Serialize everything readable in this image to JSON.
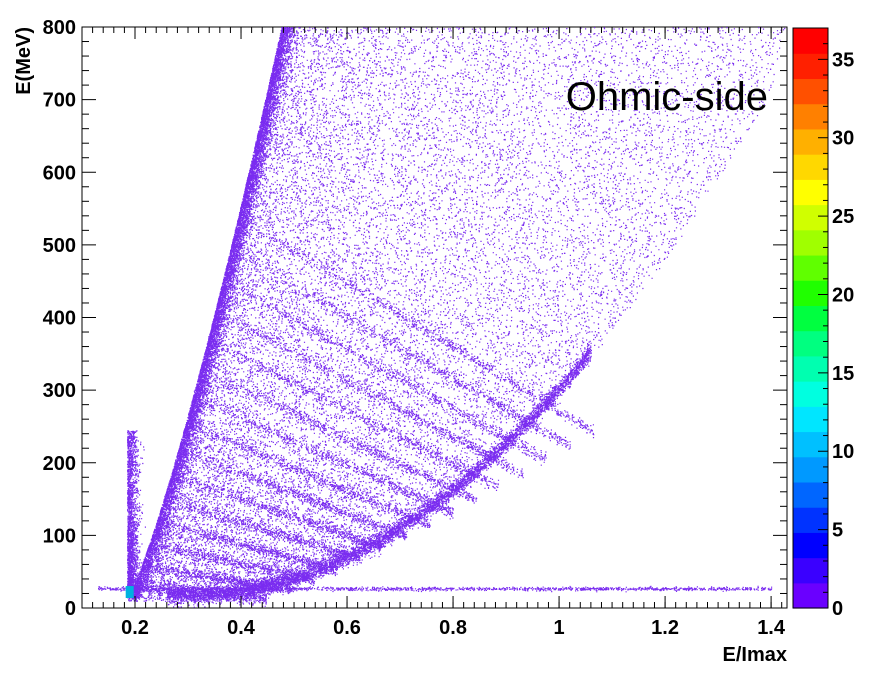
{
  "chart_data": {
    "type": "heatmap",
    "title": "",
    "xlabel": "E/Imax",
    "ylabel": "E(MeV)",
    "annotation": "Ohmic-side",
    "xlim": [
      0.1,
      1.43
    ],
    "ylim": [
      0,
      800
    ],
    "x_ticks": [
      0.2,
      0.4,
      0.6,
      0.8,
      1,
      1.2,
      1.4
    ],
    "x_tick_labels": [
      "0.2",
      "0.4",
      "0.6",
      "0.8",
      "1",
      "1.2",
      "1.4"
    ],
    "y_ticks": [
      0,
      100,
      200,
      300,
      400,
      500,
      600,
      700,
      800
    ],
    "y_tick_labels": [
      "0",
      "100",
      "200",
      "300",
      "400",
      "500",
      "600",
      "700",
      "800"
    ],
    "colorbar": {
      "range": [
        0,
        37
      ],
      "ticks": [
        0,
        5,
        10,
        15,
        20,
        25,
        30,
        35
      ],
      "tick_labels": [
        "0",
        "5",
        "10",
        "15",
        "20",
        "25",
        "30",
        "35"
      ],
      "colors": [
        "#6a00ff",
        "#3a00ff",
        "#0000ff",
        "#0033ff",
        "#0066ff",
        "#0099ff",
        "#00c0ff",
        "#00e6ff",
        "#00ffe0",
        "#00ffb0",
        "#00ff80",
        "#00ff40",
        "#20ff00",
        "#60ff00",
        "#a0ff00",
        "#d0ff00",
        "#ffff00",
        "#ffd800",
        "#ffb000",
        "#ff8000",
        "#ff5000",
        "#ff2000",
        "#ff0000"
      ]
    },
    "point_color": "#7a2cf0",
    "hotspot": {
      "x": 0.19,
      "y": 22,
      "color": "#00b0e0"
    },
    "band_model": {
      "edge_ridge": "E = 3590 * (x - 0.175)^1.25",
      "bottom_ridge": "E = 15 + 580 * (x - 0.3)^2",
      "band_count": 15,
      "flat_line_y": 27,
      "flat_line_x_range": [
        0.13,
        1.4
      ]
    }
  }
}
